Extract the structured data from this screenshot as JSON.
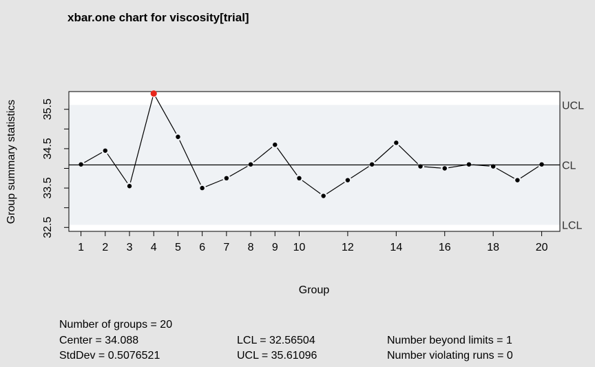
{
  "chart_data": {
    "type": "line",
    "title": "xbar.one chart for viscosity[trial]",
    "xlabel": "Group",
    "ylabel": "Group summary statistics",
    "x": [
      1,
      2,
      3,
      4,
      5,
      6,
      7,
      8,
      9,
      10,
      11,
      12,
      13,
      14,
      15,
      16,
      17,
      18,
      19,
      20
    ],
    "values": [
      34.1,
      34.45,
      33.55,
      35.9,
      34.8,
      33.5,
      33.75,
      34.1,
      34.6,
      33.75,
      33.3,
      33.7,
      34.1,
      34.65,
      34.05,
      34.0,
      34.1,
      34.05,
      33.7,
      34.1
    ],
    "xlim": [
      0.5,
      20.75
    ],
    "ylim": [
      32.4,
      35.95
    ],
    "xticks": [
      "1",
      "2",
      "3",
      "4",
      "5",
      "6",
      "7",
      "8",
      "9",
      "10",
      "12",
      "14",
      "16",
      "18",
      "20"
    ],
    "yticks": [
      "32.5",
      "33.5",
      "34.5",
      "35.5"
    ],
    "center": 34.088,
    "lcl": 32.56504,
    "ucl": 35.61096,
    "limit_labels": {
      "ucl": "UCL",
      "cl": "CL",
      "lcl": "LCL"
    },
    "point_color": "#000000",
    "violation_color": "#e8271c",
    "in_control_band_color": "#eff2f5",
    "grid": false
  },
  "stats": {
    "groups": "Number of groups = 20",
    "center": "Center = 34.088",
    "stddev": "StdDev = 0.5076521",
    "lcl": "LCL = 32.56504",
    "ucl": "UCL = 35.61096",
    "beyond": "Number beyond limits = 1",
    "runs": "Number violating runs = 0"
  }
}
